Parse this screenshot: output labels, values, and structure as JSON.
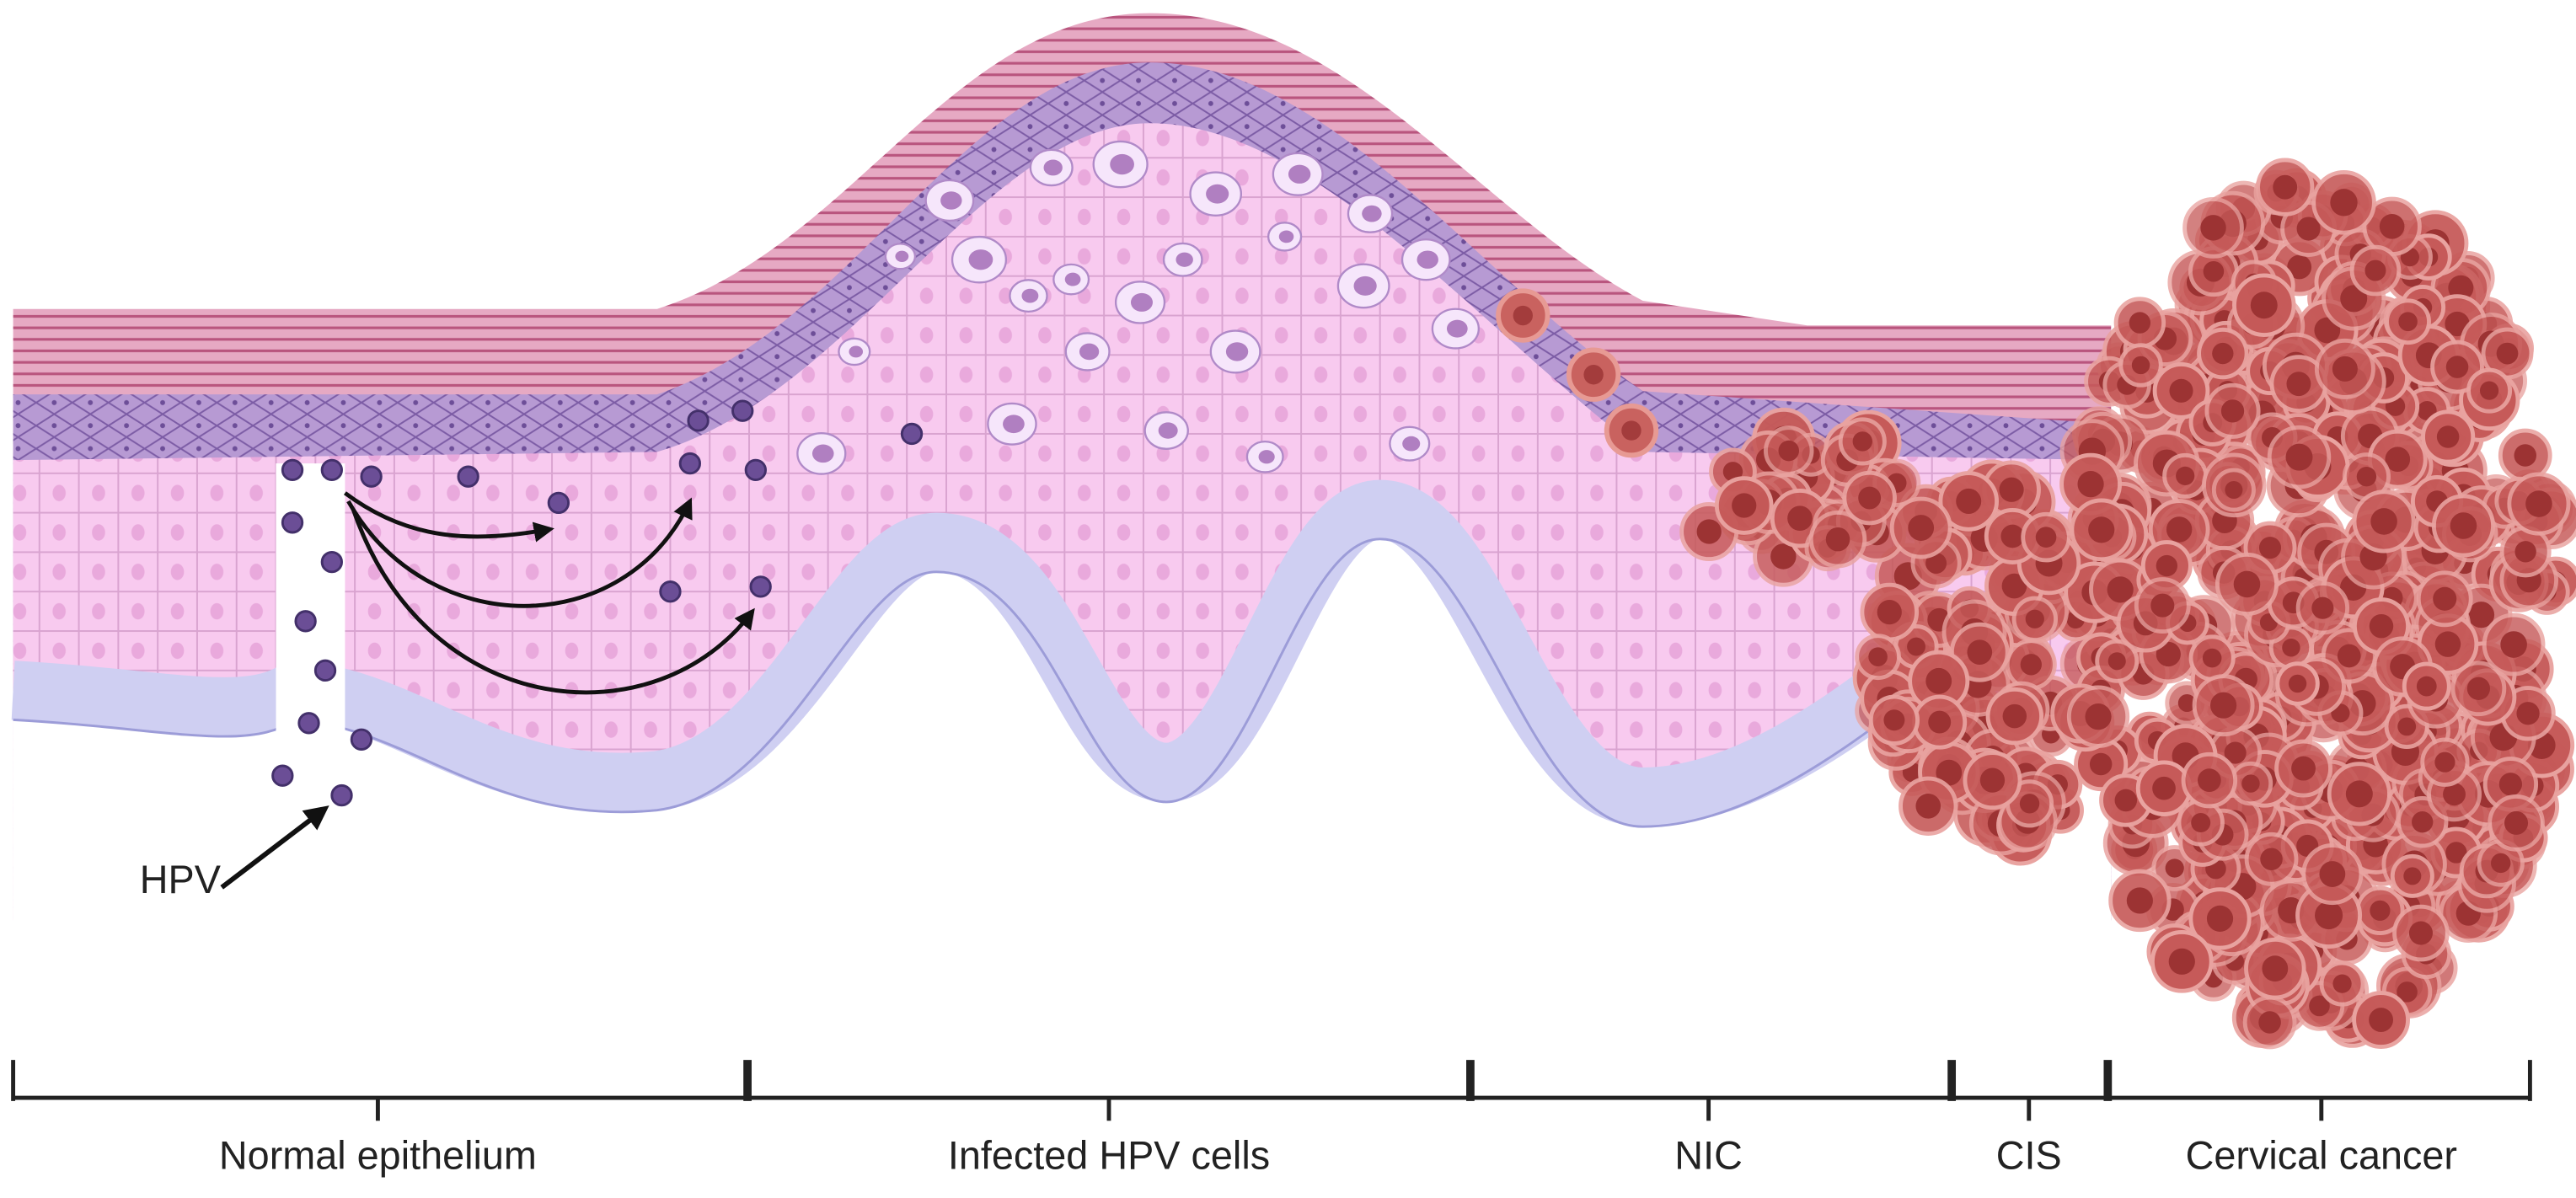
{
  "hpv_label": "HPV",
  "stages": [
    {
      "label": "Normal epithelium"
    },
    {
      "label": "Infected HPV cells"
    },
    {
      "label": "NIC"
    },
    {
      "label": "CIS"
    },
    {
      "label": "Cervical cancer"
    }
  ]
}
